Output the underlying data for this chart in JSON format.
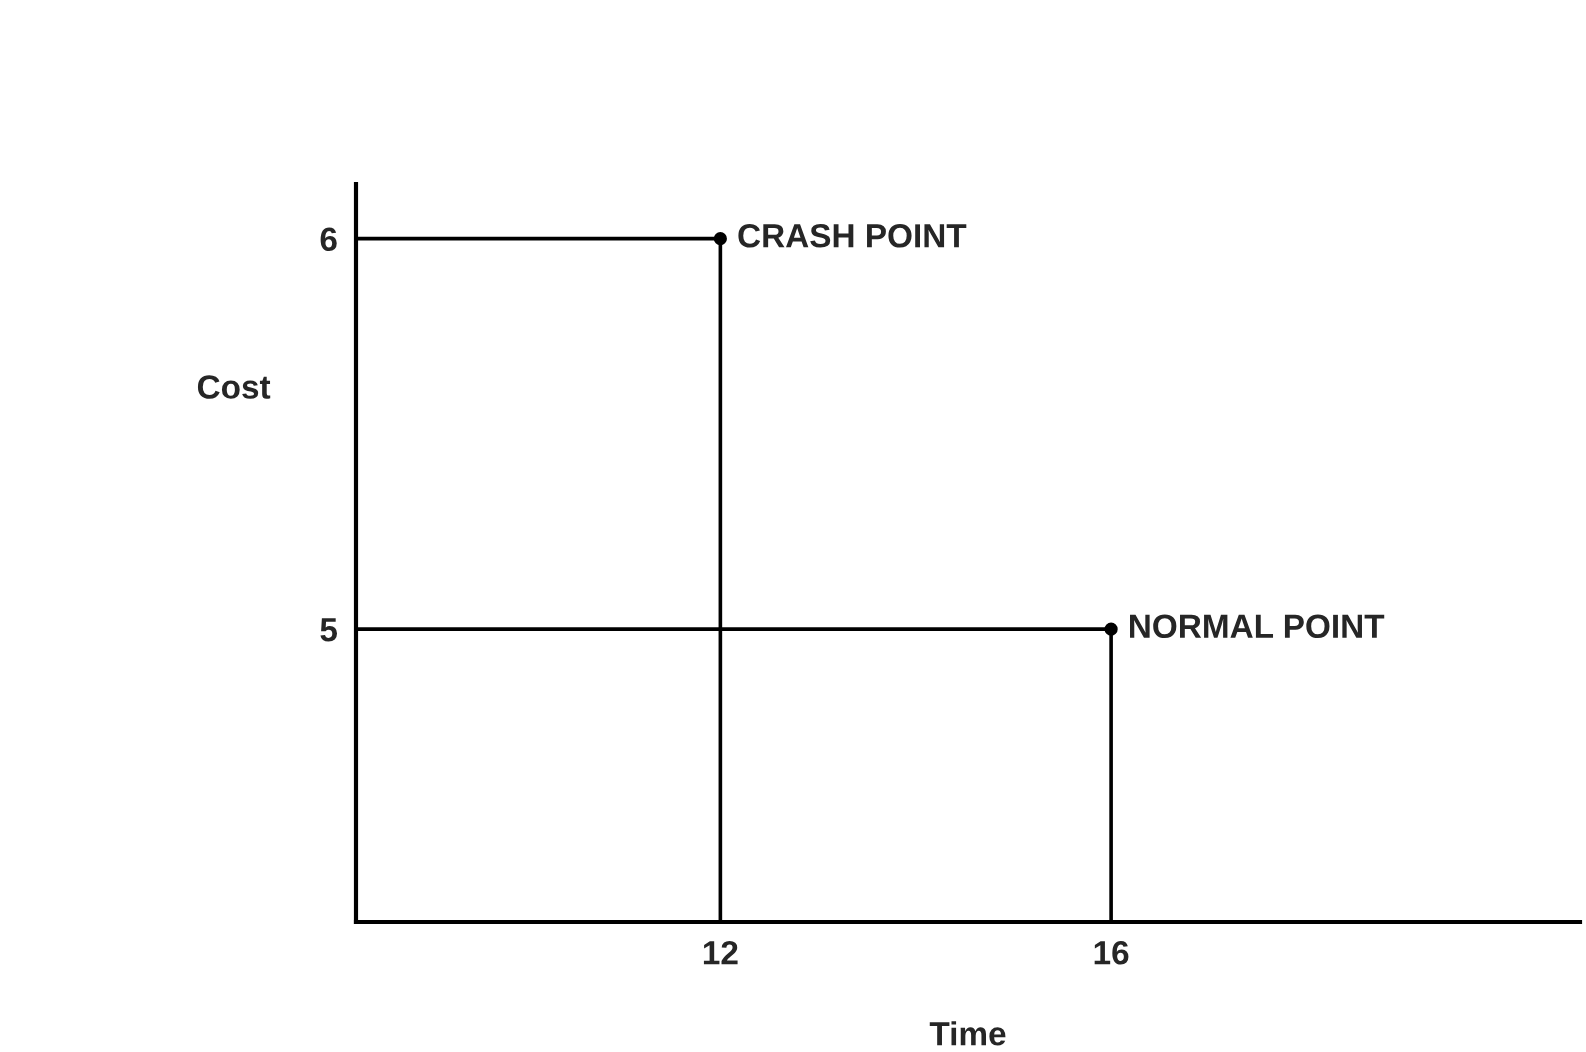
{
  "chart_data": {
    "type": "scatter",
    "xlabel": "Time",
    "ylabel": "Cost",
    "xlim": [
      8.27,
      20.8
    ],
    "ylim": [
      4.25,
      6.14
    ],
    "xticks": [
      12,
      16
    ],
    "yticks": [
      5,
      6
    ],
    "grid": false,
    "legend": false,
    "series": [
      {
        "type": "line",
        "color": "#000000",
        "x": [
          8.27,
          12,
          12
        ],
        "values": [
          6,
          6,
          4.25
        ],
        "marker": "none"
      },
      {
        "type": "line",
        "color": "#000000",
        "x": [
          8.27,
          16,
          16
        ],
        "values": [
          5,
          5,
          4.25
        ],
        "marker": "none"
      },
      {
        "color": "#000000",
        "x": [
          12,
          16
        ],
        "values": [
          6,
          5
        ],
        "marker": "circle"
      }
    ],
    "annotations": [
      {
        "text": "CRASH POINT",
        "x": 12,
        "y": 6
      },
      {
        "text": "NORMAL POINT",
        "x": 16,
        "y": 5
      }
    ]
  }
}
